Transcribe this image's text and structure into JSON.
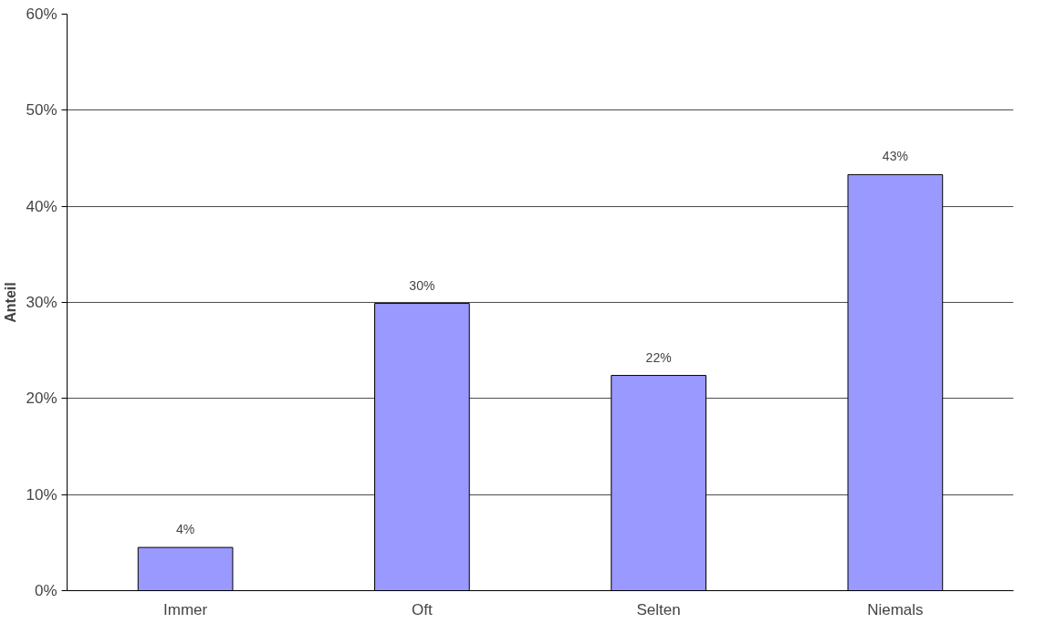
{
  "chart_data": {
    "type": "bar",
    "ylabel": "Anteil",
    "categories": [
      "Immer",
      "Oft",
      "Selten",
      "Niemals"
    ],
    "values": [
      4.5,
      29.9,
      22.4,
      43.3
    ],
    "value_labels": [
      "4%",
      "30%",
      "22%",
      "43%"
    ],
    "color": "#9999ff",
    "ylim": [
      0,
      60
    ],
    "yticks": [
      {
        "value": 0,
        "label": "0%"
      },
      {
        "value": 10,
        "label": "10%"
      },
      {
        "value": 20,
        "label": "20%"
      },
      {
        "value": 30,
        "label": "30%"
      },
      {
        "value": 40,
        "label": "40%"
      },
      {
        "value": 50,
        "label": "50%"
      },
      {
        "value": 60,
        "label": "60%"
      }
    ],
    "grid": "y"
  }
}
